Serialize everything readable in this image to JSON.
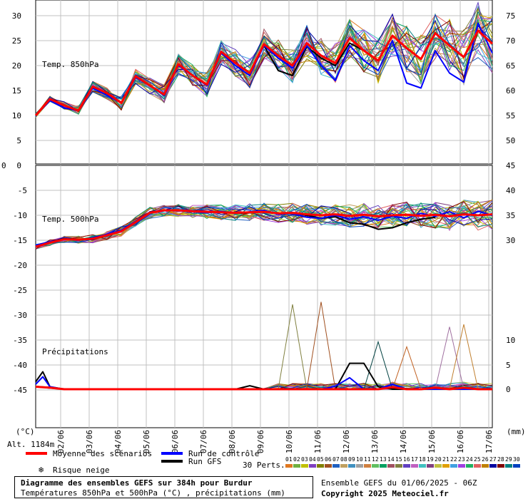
{
  "chart_data": {
    "type": "line",
    "title": "Diagramme des ensembles GEFS sur 384h pour Burdur",
    "subtitle": "Températures 850hPa et 500hPa (°C) , précipitations (mm)",
    "x_dates": [
      "02/06",
      "03/06",
      "04/06",
      "05/06",
      "06/06",
      "07/06",
      "08/06",
      "09/06",
      "10/06",
      "11/06",
      "12/06",
      "13/06",
      "14/06",
      "15/06",
      "16/06",
      "17/06"
    ],
    "x_range_hours": [
      0,
      384
    ],
    "altitude": "Alt. 1184m",
    "upper_panel": {
      "label": "Temp. 850hPa",
      "left_ticks": [
        "30",
        "25",
        "20",
        "15",
        "10",
        "5",
        "0"
      ],
      "right_ticks": [
        "75",
        "70",
        "65",
        "60",
        "55",
        "50"
      ],
      "ylim": [
        0,
        30
      ],
      "mean": [
        [
          0,
          10
        ],
        [
          12,
          13.3
        ],
        [
          24,
          12
        ],
        [
          36,
          11
        ],
        [
          48,
          15.8
        ],
        [
          60,
          14.5
        ],
        [
          72,
          12.5
        ],
        [
          84,
          17.9
        ],
        [
          96,
          16
        ],
        [
          108,
          14.2
        ],
        [
          120,
          20.3
        ],
        [
          132,
          18
        ],
        [
          144,
          16.2
        ],
        [
          156,
          22.8
        ],
        [
          168,
          20.5
        ],
        [
          180,
          18.5
        ],
        [
          192,
          24.3
        ],
        [
          204,
          22
        ],
        [
          216,
          20
        ],
        [
          228,
          24.5
        ],
        [
          240,
          22
        ],
        [
          252,
          20.5
        ],
        [
          264,
          25.5
        ],
        [
          276,
          23
        ],
        [
          288,
          21
        ],
        [
          300,
          26
        ],
        [
          312,
          23.5
        ],
        [
          324,
          21.3
        ],
        [
          336,
          26.5
        ],
        [
          348,
          24
        ],
        [
          360,
          21.7
        ],
        [
          372,
          27
        ],
        [
          384,
          24.4
        ]
      ],
      "control": [
        [
          0,
          10
        ],
        [
          12,
          13
        ],
        [
          24,
          11.5
        ],
        [
          36,
          11
        ],
        [
          48,
          15.5
        ],
        [
          60,
          14
        ],
        [
          72,
          12.5
        ],
        [
          84,
          17.6
        ],
        [
          96,
          16
        ],
        [
          108,
          14
        ],
        [
          120,
          20
        ],
        [
          132,
          18
        ],
        [
          144,
          16
        ],
        [
          156,
          22.5
        ],
        [
          168,
          20
        ],
        [
          180,
          18
        ],
        [
          192,
          24
        ],
        [
          204,
          21.5
        ],
        [
          216,
          19.5
        ],
        [
          228,
          24
        ],
        [
          240,
          20
        ],
        [
          252,
          17
        ],
        [
          264,
          24
        ],
        [
          276,
          21
        ],
        [
          288,
          19
        ],
        [
          300,
          25
        ],
        [
          312,
          16.5
        ],
        [
          324,
          15.5
        ],
        [
          336,
          23
        ],
        [
          348,
          18.5
        ],
        [
          360,
          16.7
        ],
        [
          372,
          28.5
        ],
        [
          384,
          22.5
        ]
      ],
      "gfs": [
        [
          0,
          10
        ],
        [
          12,
          13
        ],
        [
          24,
          11.5
        ],
        [
          36,
          11
        ],
        [
          48,
          15.8
        ],
        [
          60,
          14.5
        ],
        [
          72,
          12.5
        ],
        [
          84,
          17.9
        ],
        [
          96,
          16
        ],
        [
          108,
          14
        ],
        [
          120,
          20.3
        ],
        [
          132,
          18
        ],
        [
          144,
          16
        ],
        [
          156,
          22.8
        ],
        [
          168,
          20.5
        ],
        [
          180,
          18.5
        ],
        [
          192,
          24
        ],
        [
          204,
          19
        ],
        [
          216,
          18
        ],
        [
          228,
          23.8
        ],
        [
          240,
          21.5
        ],
        [
          252,
          20
        ],
        [
          264,
          24.5
        ],
        [
          276,
          23
        ]
      ]
    },
    "lower_panel": {
      "label": "Temp. 500hPa",
      "left_ticks": [
        "-5",
        "-10",
        "-15",
        "-20",
        "-25",
        "-30",
        "-35",
        "-40",
        "-45"
      ],
      "right_ticks": [
        "45",
        "40",
        "35",
        "30"
      ],
      "ylim": [
        -50,
        0
      ],
      "mean": [
        [
          0,
          -16.3
        ],
        [
          12,
          -15.5
        ],
        [
          24,
          -14.8
        ],
        [
          36,
          -14.9
        ],
        [
          48,
          -14.7
        ],
        [
          60,
          -14
        ],
        [
          72,
          -13.2
        ],
        [
          84,
          -11.4
        ],
        [
          96,
          -9.5
        ],
        [
          108,
          -9
        ],
        [
          120,
          -9
        ],
        [
          132,
          -9.2
        ],
        [
          144,
          -9.3
        ],
        [
          156,
          -9.4
        ],
        [
          168,
          -9.5
        ],
        [
          180,
          -9.4
        ],
        [
          192,
          -9.3
        ],
        [
          204,
          -9.6
        ],
        [
          216,
          -9.5
        ],
        [
          228,
          -9.8
        ],
        [
          240,
          -10
        ],
        [
          252,
          -9.8
        ],
        [
          264,
          -10.1
        ],
        [
          276,
          -9.9
        ],
        [
          288,
          -10.2
        ],
        [
          300,
          -10
        ],
        [
          312,
          -9.9
        ],
        [
          324,
          -10.1
        ],
        [
          336,
          -9.9
        ],
        [
          348,
          -10.2
        ],
        [
          360,
          -9.8
        ],
        [
          372,
          -10
        ],
        [
          384,
          -9.8
        ]
      ],
      "control": [
        [
          0,
          -16
        ],
        [
          12,
          -15.3
        ],
        [
          24,
          -14.8
        ],
        [
          36,
          -15
        ],
        [
          48,
          -14.5
        ],
        [
          60,
          -13.8
        ],
        [
          72,
          -13
        ],
        [
          84,
          -11.2
        ],
        [
          96,
          -9.4
        ],
        [
          108,
          -9
        ],
        [
          120,
          -9.1
        ],
        [
          132,
          -9.3
        ],
        [
          144,
          -9.5
        ],
        [
          156,
          -9.2
        ],
        [
          168,
          -9.6
        ],
        [
          180,
          -9.3
        ],
        [
          192,
          -9
        ],
        [
          204,
          -9.8
        ],
        [
          216,
          -9.6
        ],
        [
          228,
          -10.4
        ],
        [
          240,
          -10.6
        ],
        [
          252,
          -10
        ],
        [
          264,
          -10.8
        ],
        [
          276,
          -10.3
        ],
        [
          288,
          -11
        ],
        [
          300,
          -10.2
        ],
        [
          312,
          -10.6
        ],
        [
          324,
          -9.6
        ],
        [
          336,
          -10.2
        ],
        [
          348,
          -9.3
        ],
        [
          360,
          -10.5
        ],
        [
          372,
          -9.2
        ],
        [
          384,
          -10
        ]
      ],
      "gfs": [
        [
          0,
          -16.2
        ],
        [
          12,
          -15.4
        ],
        [
          24,
          -14.7
        ],
        [
          36,
          -15
        ],
        [
          48,
          -14.6
        ],
        [
          60,
          -14
        ],
        [
          72,
          -13.1
        ],
        [
          84,
          -11.3
        ],
        [
          96,
          -9.5
        ],
        [
          108,
          -9
        ],
        [
          120,
          -9
        ],
        [
          132,
          -9.3
        ],
        [
          144,
          -9.4
        ],
        [
          156,
          -9.3
        ],
        [
          168,
          -9.6
        ],
        [
          180,
          -9.5
        ],
        [
          192,
          -9.3
        ],
        [
          204,
          -9.7
        ],
        [
          216,
          -9.5
        ],
        [
          228,
          -10
        ],
        [
          240,
          -10.6
        ],
        [
          252,
          -10.3
        ],
        [
          264,
          -11.5
        ],
        [
          276,
          -11.8
        ],
        [
          288,
          -12.8
        ],
        [
          300,
          -12.5
        ],
        [
          312,
          -11.5
        ],
        [
          324,
          -10.8
        ],
        [
          336,
          -10.4
        ]
      ]
    },
    "precip_panel": {
      "label": "Précipitations",
      "right_ticks": [
        "10",
        "5",
        "0"
      ],
      "unit": "(mm)",
      "mean": [
        [
          0,
          0.5
        ],
        [
          12,
          0.3
        ],
        [
          24,
          0
        ],
        [
          36,
          0
        ],
        [
          48,
          0
        ],
        [
          60,
          0
        ],
        [
          72,
          0
        ],
        [
          84,
          0
        ],
        [
          96,
          0
        ],
        [
          108,
          0
        ],
        [
          120,
          0
        ],
        [
          132,
          0
        ],
        [
          144,
          0
        ],
        [
          156,
          0
        ],
        [
          168,
          0
        ],
        [
          180,
          0
        ],
        [
          192,
          0
        ],
        [
          204,
          0
        ],
        [
          216,
          0
        ],
        [
          228,
          0
        ],
        [
          240,
          0
        ],
        [
          252,
          0
        ],
        [
          264,
          0
        ],
        [
          276,
          0
        ],
        [
          288,
          0
        ],
        [
          300,
          0.4
        ],
        [
          312,
          0
        ],
        [
          324,
          0
        ],
        [
          336,
          0.3
        ],
        [
          348,
          0
        ],
        [
          360,
          0.3
        ],
        [
          372,
          0
        ],
        [
          384,
          0
        ]
      ],
      "control": [
        [
          0,
          1
        ],
        [
          6,
          2.5
        ],
        [
          12,
          0.5
        ],
        [
          24,
          0
        ],
        [
          240,
          0
        ],
        [
          252,
          0.6
        ],
        [
          264,
          2.3
        ],
        [
          276,
          0
        ],
        [
          288,
          0
        ],
        [
          300,
          1
        ],
        [
          312,
          0
        ],
        [
          336,
          0
        ],
        [
          360,
          0
        ],
        [
          384,
          0
        ]
      ],
      "gfs": [
        [
          0,
          1.5
        ],
        [
          6,
          3.5
        ],
        [
          12,
          0.5
        ],
        [
          24,
          0
        ],
        [
          168,
          0
        ],
        [
          180,
          0.7
        ],
        [
          192,
          0
        ],
        [
          252,
          0
        ],
        [
          264,
          5.2
        ],
        [
          276,
          5.2
        ],
        [
          288,
          0.5
        ],
        [
          300,
          0
        ],
        [
          384,
          0
        ]
      ],
      "peaks": [
        [
          216,
          17
        ],
        [
          240,
          17.5
        ],
        [
          288,
          9.5
        ],
        [
          312,
          8.5
        ],
        [
          348,
          12.5
        ],
        [
          360,
          13
        ]
      ]
    },
    "y_unit_left": "(°C)",
    "y_unit_right": "(mm)",
    "colors": {
      "mean": "#ff0000",
      "control": "#0000ff",
      "gfs": "#000000",
      "grid": "#c0c0c0"
    },
    "perturbation_colors": [
      "#e07820",
      "#70b040",
      "#c0c000",
      "#8040c0",
      "#808000",
      "#a05020",
      "#2060c0",
      "#c0a060",
      "#4090c0",
      "#a0a0a0",
      "#d08040",
      "#60c060",
      "#00a060",
      "#a05060",
      "#808040",
      "#6040c0",
      "#c060c0",
      "#40c0c0",
      "#804080",
      "#c0c040",
      "#e0a000",
      "#40a0e0",
      "#a040e0",
      "#20b060",
      "#e06060",
      "#c08000",
      "#0000a0",
      "#800000",
      "#008080",
      "#0040c0"
    ]
  },
  "legend": {
    "mean_label": "Moyenne des scénarios",
    "control_label": "Run de contrôle",
    "gfs_label": "Run GFS",
    "snow_label": "Risque neige",
    "perts_label": "30 Perts.",
    "pert_numbers": [
      "01",
      "02",
      "03",
      "04",
      "05",
      "06",
      "07",
      "08",
      "09",
      "10",
      "11",
      "12",
      "13",
      "14",
      "15",
      "16",
      "17",
      "18",
      "19",
      "20",
      "21",
      "22",
      "23",
      "24",
      "25",
      "26",
      "27",
      "28",
      "29",
      "30"
    ]
  },
  "footer": {
    "title": "Diagramme des ensembles GEFS sur 384h pour Burdur",
    "subtitle": "Températures 850hPa et 500hPa (°C) , précipitations (mm)",
    "run_info": "Ensemble GEFS du 01/06/2025 - 06Z",
    "copyright": "Copyright 2025 Meteociel.fr"
  }
}
